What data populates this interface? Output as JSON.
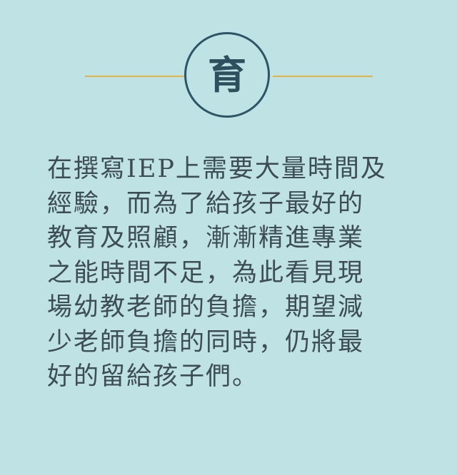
{
  "emblem": {
    "character": "育"
  },
  "body": {
    "lines": [
      "在撰寫IEP上需要大量時間及",
      "經驗，而為了給孩子最好的",
      "教育及照顧，漸漸精進專業",
      "之能時間不足，為此看見現",
      "場幼教老師的負擔，期望減",
      "少老師負擔的同時，仍將最",
      "好的留給孩子們。"
    ]
  },
  "colors": {
    "background": "#bfe2e4",
    "accent_line": "#e2b34a",
    "circle": "#2d5566",
    "text": "#3d4d55"
  }
}
